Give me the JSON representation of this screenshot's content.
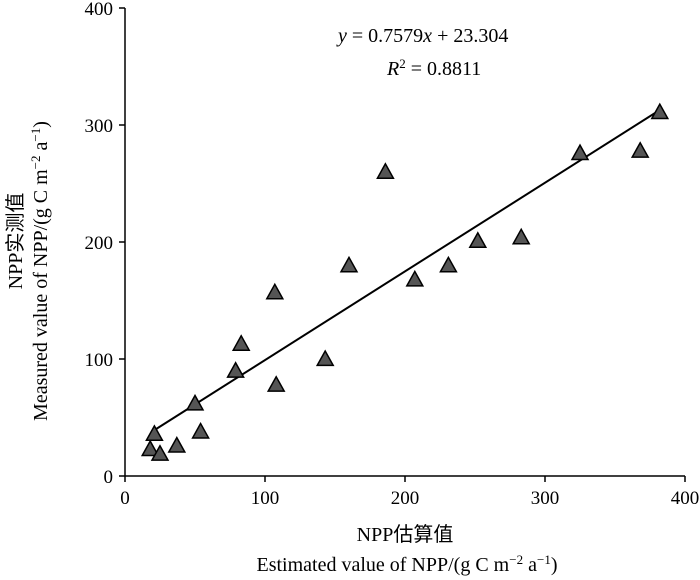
{
  "chart_data": {
    "type": "scatter",
    "marker": "triangle",
    "marker_fill": "#555555",
    "marker_edge": "#000000",
    "xlabel_line1": "NPP估算值",
    "xlabel_line2": "Estimated value of  NPP/(g C m",
    "xlabel_line2_sup": "−2",
    "xlabel_line2_mid": " a",
    "xlabel_line2_sup2": "−1",
    "xlabel_line2_end": ")",
    "ylabel_line1": "NPP实测值",
    "ylabel_line2": "Measured value of NPP/(g C m",
    "ylabel_line2_sup": "−2",
    "ylabel_line2_mid": " a",
    "ylabel_line2_sup2": "−1",
    "ylabel_line2_end": ")",
    "xlim": [
      0,
      400
    ],
    "ylim": [
      0,
      400
    ],
    "xticks": [
      0,
      100,
      200,
      300,
      400
    ],
    "yticks": [
      0,
      100,
      200,
      300,
      400
    ],
    "equation_y": "y",
    "equation_eq": " = 0.7579",
    "equation_x": "x",
    "equation_rest": " + 23.304",
    "r2_label": "R",
    "r2_sup": "2",
    "r2_rest": " = 0.8811",
    "regression": {
      "slope": 0.7579,
      "intercept": 23.304,
      "x_range": [
        20,
        383
      ]
    },
    "points": [
      {
        "x": 18,
        "y": 23
      },
      {
        "x": 21,
        "y": 36
      },
      {
        "x": 25,
        "y": 19
      },
      {
        "x": 37,
        "y": 26
      },
      {
        "x": 50,
        "y": 62
      },
      {
        "x": 54,
        "y": 38
      },
      {
        "x": 79,
        "y": 90
      },
      {
        "x": 83,
        "y": 113
      },
      {
        "x": 107,
        "y": 157
      },
      {
        "x": 108,
        "y": 78
      },
      {
        "x": 143,
        "y": 100
      },
      {
        "x": 160,
        "y": 180
      },
      {
        "x": 186,
        "y": 260
      },
      {
        "x": 207,
        "y": 168
      },
      {
        "x": 231,
        "y": 180
      },
      {
        "x": 252,
        "y": 201
      },
      {
        "x": 283,
        "y": 204
      },
      {
        "x": 325,
        "y": 276
      },
      {
        "x": 368,
        "y": 278
      },
      {
        "x": 382,
        "y": 311
      }
    ]
  }
}
